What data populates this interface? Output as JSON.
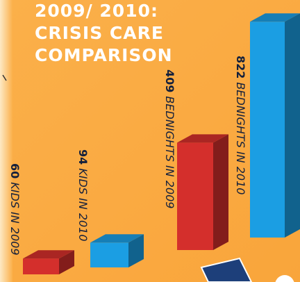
{
  "title": [
    "2009/ 2010:",
    "CRISIS CARE",
    "COMPARISON"
  ],
  "chart_data": [
    {
      "type": "bar",
      "categories": [
        "KIDS IN 2009",
        "KIDS IN 2010"
      ],
      "values": [
        60,
        94
      ],
      "colors": [
        "#d42f2c",
        "#1b9ee3"
      ]
    },
    {
      "type": "bar",
      "categories": [
        "BEDNIGHTS IN 2009",
        "BEDNIGHTS IN 2010"
      ],
      "values": [
        409,
        822
      ],
      "colors": [
        "#d42f2c",
        "#1b9ee3"
      ]
    }
  ]
}
